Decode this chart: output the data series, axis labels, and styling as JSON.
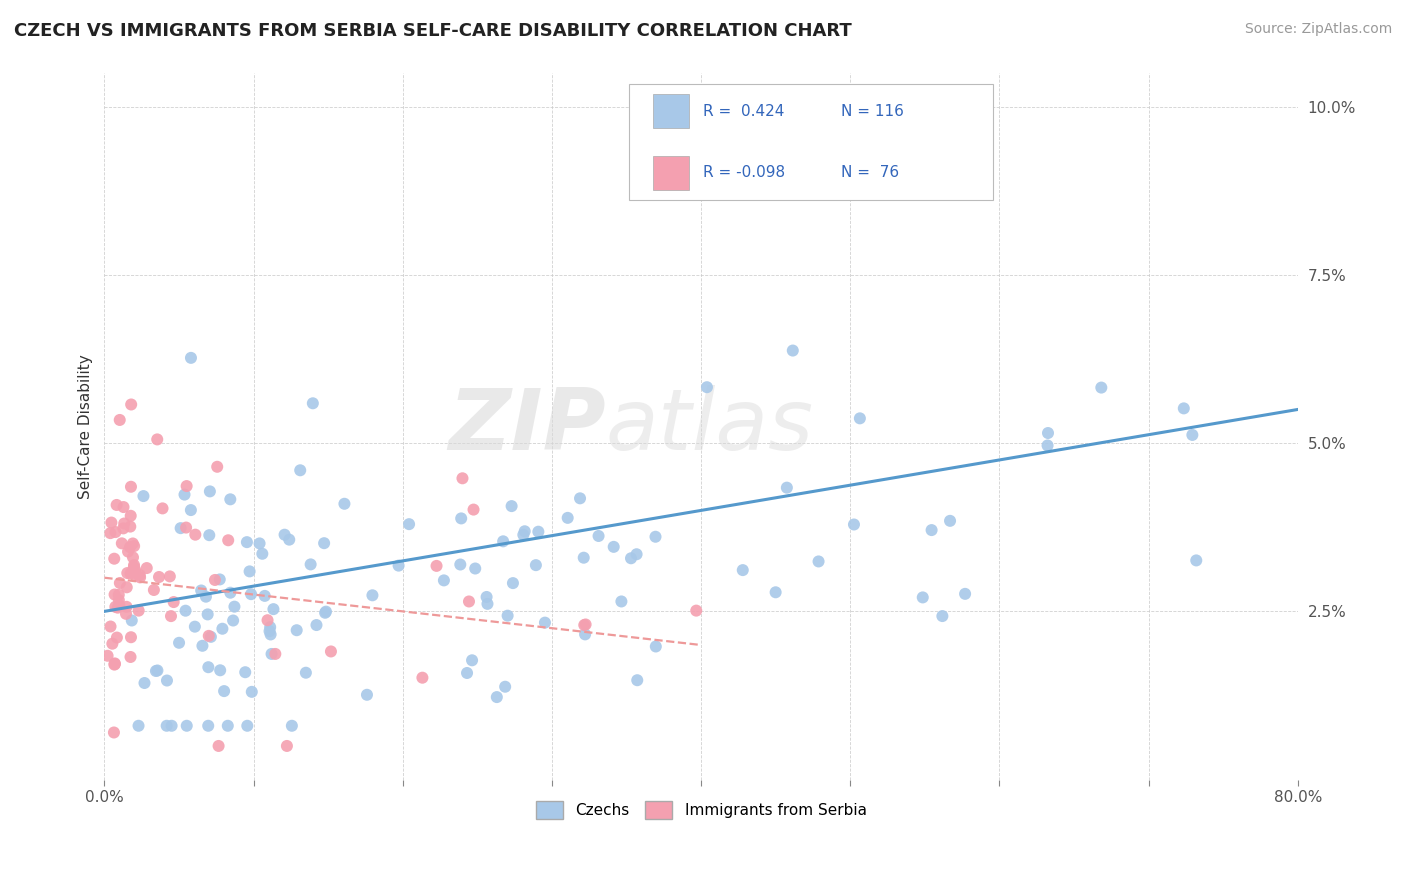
{
  "title": "CZECH VS IMMIGRANTS FROM SERBIA SELF-CARE DISABILITY CORRELATION CHART",
  "source": "Source: ZipAtlas.com",
  "ylabel": "Self-Care Disability",
  "xlim": [
    0,
    0.8
  ],
  "ylim": [
    0,
    0.105
  ],
  "ytick_positions": [
    0.025,
    0.05,
    0.075,
    0.1
  ],
  "ytick_labels": [
    "2.5%",
    "5.0%",
    "7.5%",
    "10.0%"
  ],
  "color_czech": "#a8c8e8",
  "color_serbia": "#f4a0b0",
  "color_trend_czech": "#5599cc",
  "color_trend_serbia": "#ee9999",
  "background_color": "#ffffff",
  "grid_color": "#cccccc",
  "title_fontsize": 13,
  "tick_fontsize": 11,
  "legend_fontsize": 11
}
